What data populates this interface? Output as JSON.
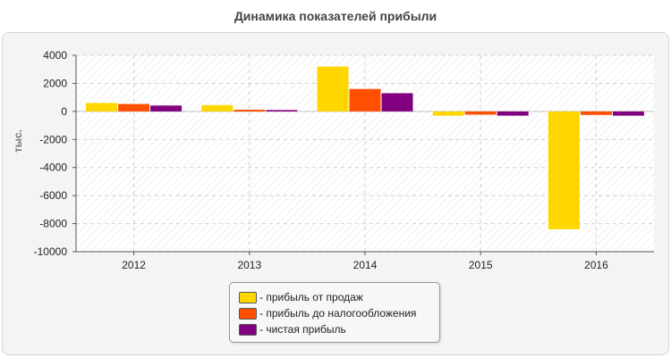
{
  "chart_data": {
    "type": "bar",
    "title": "Динамика показателей прибыли",
    "ylabel": "тыс.",
    "xlabel": "",
    "categories": [
      "2012",
      "2013",
      "2014",
      "2015",
      "2016"
    ],
    "ylim": [
      -10000,
      4000
    ],
    "yticks": [
      4000,
      2000,
      0,
      -2000,
      -4000,
      -6000,
      -8000,
      -10000
    ],
    "grid": true,
    "legend_position": "bottom-center",
    "series": [
      {
        "name": "прибыль от продаж",
        "color": "#FFD700",
        "values": [
          600,
          450,
          3200,
          -300,
          -8400
        ]
      },
      {
        "name": "прибыль до налогообложения",
        "color": "#FF4F00",
        "values": [
          530,
          120,
          1600,
          -230,
          -250
        ]
      },
      {
        "name": "чистая прибыль",
        "color": "#800080",
        "values": [
          420,
          100,
          1300,
          -300,
          -300
        ]
      }
    ]
  }
}
